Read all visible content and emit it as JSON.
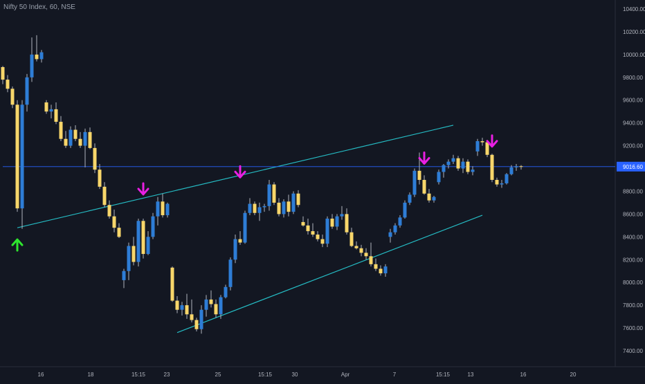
{
  "header": {
    "symbol_title": "Nifty 50 Index, 60, NSE"
  },
  "colors": {
    "background": "#131722",
    "bullish": "#2e7dd6",
    "bearish": "#f7d66a",
    "wick": "#b2b5be",
    "trendline": "#25bcc4",
    "price_line": "#2962ff",
    "price_label_bg": "#2962ff",
    "arrow_down": "#e91fe3",
    "arrow_up": "#2ee52e",
    "axis_text": "#b2b5be"
  },
  "chart_data": {
    "type": "candlestick",
    "title": "Nifty 50 Index, 60, NSE",
    "ylim": [
      7250,
      10500
    ],
    "y_ticks": [
      "10400.00",
      "10200.00",
      "10000.00",
      "9800.00",
      "9600.00",
      "9400.00",
      "9200.00",
      "9000.00",
      "8800.00",
      "8600.00",
      "8400.00",
      "8200.00",
      "8000.00",
      "7800.00",
      "7600.00",
      "7400.00"
    ],
    "x_tick_labels": [
      "16",
      "18",
      "15:15",
      "23",
      "25",
      "15:15",
      "30",
      "Apr",
      "7",
      "15:15",
      "13",
      "16",
      "20"
    ],
    "last_price": 9016.6,
    "last_price_label": "9016.60",
    "candles": [
      [
        9890,
        9900,
        9740,
        9780
      ],
      [
        9780,
        9820,
        9670,
        9700
      ],
      [
        9700,
        9720,
        9530,
        9560
      ],
      [
        9560,
        9600,
        8620,
        8650
      ],
      [
        8650,
        9600,
        8470,
        9560
      ],
      [
        9560,
        9830,
        9500,
        9800
      ],
      [
        9800,
        10150,
        9760,
        10000
      ],
      [
        10000,
        10170,
        9940,
        9960
      ],
      [
        9960,
        10040,
        9930,
        10020
      ],
      [
        9580,
        9600,
        9480,
        9500
      ],
      [
        9500,
        9560,
        9440,
        9520
      ],
      [
        9520,
        9580,
        9390,
        9410
      ],
      [
        9410,
        9460,
        9240,
        9260
      ],
      [
        9260,
        9330,
        9180,
        9200
      ],
      [
        9200,
        9370,
        9180,
        9340
      ],
      [
        9340,
        9380,
        9240,
        9260
      ],
      [
        9260,
        9320,
        9180,
        9200
      ],
      [
        9200,
        9350,
        9010,
        9320
      ],
      [
        9320,
        9360,
        9170,
        9180
      ],
      [
        9180,
        9220,
        8960,
        8990
      ],
      [
        8990,
        9040,
        8820,
        8840
      ],
      [
        8840,
        8880,
        8660,
        8680
      ],
      [
        8680,
        8720,
        8560,
        8580
      ],
      [
        8580,
        8640,
        8440,
        8480
      ],
      [
        8480,
        8520,
        8390,
        8400
      ],
      [
        8020,
        8120,
        7950,
        8100
      ],
      [
        8100,
        8350,
        8020,
        8320
      ],
      [
        8320,
        8400,
        8150,
        8180
      ],
      [
        8180,
        8560,
        8140,
        8540
      ],
      [
        8540,
        8560,
        8210,
        8250
      ],
      [
        8250,
        8450,
        8240,
        8400
      ],
      [
        8400,
        8610,
        8380,
        8580
      ],
      [
        8580,
        8750,
        8500,
        8710
      ],
      [
        8710,
        8780,
        8570,
        8590
      ],
      [
        8590,
        8700,
        8570,
        8690
      ],
      [
        8130,
        8140,
        7830,
        7840
      ],
      [
        7840,
        7880,
        7730,
        7760
      ],
      [
        7760,
        7830,
        7710,
        7800
      ],
      [
        7800,
        7900,
        7680,
        7720
      ],
      [
        7720,
        7850,
        7650,
        7670
      ],
      [
        7670,
        7690,
        7570,
        7590
      ],
      [
        7590,
        7800,
        7550,
        7760
      ],
      [
        7760,
        7890,
        7700,
        7850
      ],
      [
        7850,
        7930,
        7780,
        7810
      ],
      [
        7810,
        7850,
        7690,
        7720
      ],
      [
        7720,
        7890,
        7680,
        7870
      ],
      [
        7870,
        7980,
        7860,
        7960
      ],
      [
        7960,
        8220,
        7930,
        8200
      ],
      [
        8200,
        8420,
        8170,
        8380
      ],
      [
        8380,
        8450,
        8330,
        8350
      ],
      [
        8350,
        8630,
        8340,
        8610
      ],
      [
        8610,
        8740,
        8590,
        8690
      ],
      [
        8690,
        8710,
        8590,
        8610
      ],
      [
        8610,
        8700,
        8540,
        8660
      ],
      [
        8660,
        8690,
        8620,
        8670
      ],
      [
        8670,
        8900,
        8630,
        8860
      ],
      [
        8860,
        8880,
        8680,
        8700
      ],
      [
        8700,
        8740,
        8580,
        8600
      ],
      [
        8600,
        8730,
        8570,
        8710
      ],
      [
        8710,
        8770,
        8580,
        8620
      ],
      [
        8620,
        8800,
        8600,
        8780
      ],
      [
        8780,
        8810,
        8660,
        8680
      ],
      [
        8530,
        8580,
        8490,
        8500
      ],
      [
        8500,
        8560,
        8420,
        8450
      ],
      [
        8450,
        8520,
        8400,
        8420
      ],
      [
        8420,
        8450,
        8360,
        8380
      ],
      [
        8380,
        8420,
        8310,
        8340
      ],
      [
        8340,
        8580,
        8310,
        8560
      ],
      [
        8560,
        8600,
        8470,
        8490
      ],
      [
        8490,
        8600,
        8460,
        8580
      ],
      [
        8580,
        8670,
        8550,
        8600
      ],
      [
        8600,
        8650,
        8420,
        8440
      ],
      [
        8440,
        8480,
        8310,
        8320
      ],
      [
        8320,
        8360,
        8290,
        8300
      ],
      [
        8300,
        8330,
        8230,
        8260
      ],
      [
        8260,
        8300,
        8200,
        8230
      ],
      [
        8230,
        8350,
        8140,
        8160
      ],
      [
        8160,
        8210,
        8100,
        8120
      ],
      [
        8120,
        8150,
        8060,
        8080
      ],
      [
        8080,
        8160,
        8050,
        8140
      ],
      [
        8400,
        8470,
        8350,
        8440
      ],
      [
        8440,
        8520,
        8420,
        8500
      ],
      [
        8500,
        8590,
        8480,
        8570
      ],
      [
        8570,
        8720,
        8560,
        8700
      ],
      [
        8700,
        8790,
        8680,
        8770
      ],
      [
        8770,
        9000,
        8750,
        8980
      ],
      [
        8980,
        9140,
        8860,
        8900
      ],
      [
        8900,
        8940,
        8770,
        8780
      ],
      [
        8780,
        8820,
        8700,
        8720
      ],
      [
        8720,
        8760,
        8700,
        8750
      ],
      [
        8880,
        8990,
        8860,
        8970
      ],
      [
        8970,
        9040,
        8920,
        9030
      ],
      [
        9030,
        9080,
        9000,
        9060
      ],
      [
        9060,
        9120,
        9040,
        9090
      ],
      [
        9090,
        9110,
        8980,
        9000
      ],
      [
        9000,
        9090,
        8960,
        9060
      ],
      [
        9060,
        9080,
        8950,
        8970
      ],
      [
        8970,
        9020,
        8940,
        8990
      ],
      [
        9150,
        9260,
        9110,
        9240
      ],
      [
        9240,
        9270,
        9200,
        9230
      ],
      [
        9230,
        9250,
        9100,
        9120
      ],
      [
        9120,
        9130,
        8880,
        8900
      ],
      [
        8900,
        8920,
        8840,
        8860
      ],
      [
        8860,
        8900,
        8830,
        8870
      ],
      [
        8870,
        8960,
        8860,
        8950
      ],
      [
        8950,
        9030,
        8940,
        9010
      ],
      [
        9010,
        9040,
        8980,
        9020
      ],
      [
        9020,
        9030,
        8990,
        9017
      ]
    ],
    "lines": [
      {
        "name": "upper-trendline",
        "points": [
          [
            3,
            8480
          ],
          [
            93,
            9380
          ]
        ]
      },
      {
        "name": "lower-trendline",
        "points": [
          [
            36,
            7560
          ],
          [
            99,
            8590
          ]
        ]
      },
      {
        "name": "price-line",
        "points": [
          [
            0,
            9016.6
          ],
          [
            111,
            9016.6
          ]
        ]
      }
    ],
    "arrows": [
      {
        "direction": "up",
        "at": [
          3,
          8280
        ]
      },
      {
        "direction": "down",
        "at": [
          29,
          8870
        ]
      },
      {
        "direction": "down",
        "at": [
          49,
          9020
        ]
      },
      {
        "direction": "down",
        "at": [
          87,
          9140
        ]
      },
      {
        "direction": "down",
        "at": [
          101,
          9290
        ]
      }
    ]
  }
}
